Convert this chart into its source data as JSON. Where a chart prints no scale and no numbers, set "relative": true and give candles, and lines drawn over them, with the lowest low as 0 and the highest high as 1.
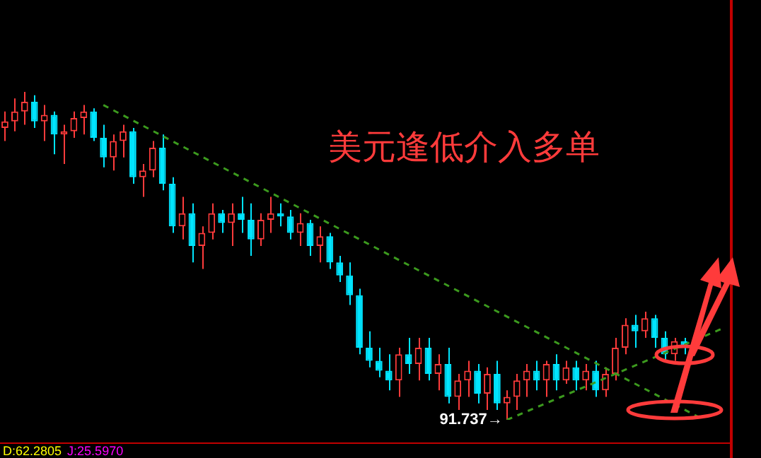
{
  "chart_data": {
    "type": "candlestick",
    "relative": true,
    "legend": false,
    "categories": [
      null,
      null,
      null,
      null,
      null,
      null,
      null,
      null,
      null,
      null,
      null,
      null,
      null,
      null,
      null,
      null,
      null,
      null,
      null,
      null,
      null,
      null,
      null,
      null,
      null,
      null,
      null,
      null,
      null,
      null,
      null,
      null,
      null,
      null,
      null,
      null,
      null,
      null,
      null,
      null,
      null,
      null,
      null,
      null,
      null,
      null,
      null,
      null,
      null,
      null,
      null,
      null,
      null,
      null,
      null,
      null,
      null,
      null,
      null,
      null,
      null,
      null,
      null,
      null,
      null,
      null,
      null,
      null,
      null,
      null,
      null,
      null,
      null,
      null
    ],
    "ohlc": [
      [
        0.89,
        0.94,
        0.85,
        0.91
      ],
      [
        0.91,
        0.98,
        0.88,
        0.94
      ],
      [
        0.94,
        1.0,
        0.9,
        0.97
      ],
      [
        0.97,
        0.99,
        0.89,
        0.91
      ],
      [
        0.91,
        0.96,
        0.85,
        0.93
      ],
      [
        0.93,
        0.94,
        0.81,
        0.87
      ],
      [
        0.87,
        0.9,
        0.78,
        0.88
      ],
      [
        0.88,
        0.94,
        0.86,
        0.92
      ],
      [
        0.92,
        0.96,
        0.87,
        0.94
      ],
      [
        0.94,
        0.95,
        0.85,
        0.86
      ],
      [
        0.86,
        0.9,
        0.77,
        0.8
      ],
      [
        0.8,
        0.87,
        0.76,
        0.85
      ],
      [
        0.85,
        0.9,
        0.8,
        0.88
      ],
      [
        0.88,
        0.89,
        0.72,
        0.74
      ],
      [
        0.74,
        0.78,
        0.68,
        0.76
      ],
      [
        0.76,
        0.85,
        0.74,
        0.83
      ],
      [
        0.83,
        0.87,
        0.7,
        0.72
      ],
      [
        0.72,
        0.74,
        0.57,
        0.59
      ],
      [
        0.59,
        0.68,
        0.55,
        0.63
      ],
      [
        0.63,
        0.66,
        0.48,
        0.53
      ],
      [
        0.53,
        0.59,
        0.46,
        0.57
      ],
      [
        0.57,
        0.66,
        0.55,
        0.63
      ],
      [
        0.63,
        0.64,
        0.57,
        0.6
      ],
      [
        0.6,
        0.66,
        0.53,
        0.63
      ],
      [
        0.63,
        0.68,
        0.57,
        0.61
      ],
      [
        0.61,
        0.66,
        0.5,
        0.55
      ],
      [
        0.55,
        0.63,
        0.53,
        0.61
      ],
      [
        0.61,
        0.68,
        0.57,
        0.63
      ],
      [
        0.63,
        0.66,
        0.59,
        0.62
      ],
      [
        0.62,
        0.64,
        0.55,
        0.57
      ],
      [
        0.57,
        0.63,
        0.53,
        0.6
      ],
      [
        0.6,
        0.61,
        0.5,
        0.53
      ],
      [
        0.53,
        0.59,
        0.48,
        0.56
      ],
      [
        0.56,
        0.57,
        0.46,
        0.48
      ],
      [
        0.48,
        0.5,
        0.42,
        0.44
      ],
      [
        0.44,
        0.48,
        0.35,
        0.38
      ],
      [
        0.38,
        0.4,
        0.2,
        0.22
      ],
      [
        0.22,
        0.27,
        0.16,
        0.18
      ],
      [
        0.18,
        0.22,
        0.13,
        0.15
      ],
      [
        0.15,
        0.2,
        0.09,
        0.12
      ],
      [
        0.12,
        0.22,
        0.07,
        0.2
      ],
      [
        0.2,
        0.25,
        0.14,
        0.17
      ],
      [
        0.17,
        0.25,
        0.12,
        0.22
      ],
      [
        0.22,
        0.25,
        0.12,
        0.14
      ],
      [
        0.14,
        0.2,
        0.09,
        0.17
      ],
      [
        0.17,
        0.22,
        0.05,
        0.07
      ],
      [
        0.07,
        0.14,
        0.03,
        0.12
      ],
      [
        0.12,
        0.18,
        0.07,
        0.15
      ],
      [
        0.15,
        0.17,
        0.05,
        0.08
      ],
      [
        0.08,
        0.16,
        0.03,
        0.14
      ],
      [
        0.14,
        0.18,
        0.03,
        0.05
      ],
      [
        0.05,
        0.09,
        0,
        0.07
      ],
      [
        0.07,
        0.14,
        0.03,
        0.12
      ],
      [
        0.12,
        0.17,
        0.07,
        0.15
      ],
      [
        0.15,
        0.18,
        0.09,
        0.12
      ],
      [
        0.12,
        0.18,
        0.07,
        0.17
      ],
      [
        0.17,
        0.2,
        0.09,
        0.12
      ],
      [
        0.12,
        0.18,
        0.11,
        0.16
      ],
      [
        0.16,
        0.18,
        0.09,
        0.12
      ],
      [
        0.12,
        0.17,
        0.09,
        0.15
      ],
      [
        0.15,
        0.18,
        0.07,
        0.09
      ],
      [
        0.09,
        0.16,
        0.07,
        0.14
      ],
      [
        0.14,
        0.25,
        0.12,
        0.22
      ],
      [
        0.22,
        0.31,
        0.2,
        0.29
      ],
      [
        0.29,
        0.32,
        0.22,
        0.27
      ],
      [
        0.27,
        0.33,
        0.25,
        0.31
      ],
      [
        0.31,
        0.32,
        0.22,
        0.25
      ],
      [
        0.25,
        0.27,
        0.18,
        0.2
      ],
      [
        0.2,
        0.25,
        0.18,
        0.24
      ],
      [
        0.24,
        0.25,
        0.2,
        0.22
      ],
      null,
      null,
      null,
      null
    ],
    "colors": [
      "#ff3b3b",
      "#ff3b3b",
      "#ff3b3b",
      "#00e5ff",
      "#ff3b3b",
      "#00e5ff",
      "#ff3b3b",
      "#ff3b3b",
      "#ff3b3b",
      "#00e5ff",
      "#00e5ff",
      "#ff3b3b",
      "#ff3b3b",
      "#00e5ff",
      "#ff3b3b",
      "#ff3b3b",
      "#00e5ff",
      "#00e5ff",
      "#ff3b3b",
      "#00e5ff",
      "#ff3b3b",
      "#ff3b3b",
      "#00e5ff",
      "#ff3b3b",
      "#00e5ff",
      "#00e5ff",
      "#ff3b3b",
      "#ff3b3b",
      "#00e5ff",
      "#00e5ff",
      "#ff3b3b",
      "#00e5ff",
      "#ff3b3b",
      "#00e5ff",
      "#00e5ff",
      "#00e5ff",
      "#00e5ff",
      "#00e5ff",
      "#00e5ff",
      "#00e5ff",
      "#ff3b3b",
      "#00e5ff",
      "#ff3b3b",
      "#00e5ff",
      "#ff3b3b",
      "#00e5ff",
      "#ff3b3b",
      "#ff3b3b",
      "#00e5ff",
      "#ff3b3b",
      "#00e5ff",
      "#ff3b3b",
      "#ff3b3b",
      "#ff3b3b",
      "#00e5ff",
      "#ff3b3b",
      "#00e5ff",
      "#ff3b3b",
      "#00e5ff",
      "#ff3b3b",
      "#00e5ff",
      "#ff3b3b",
      "#ff3b3b",
      "#ff3b3b",
      "#00e5ff",
      "#ff3b3b",
      "#00e5ff",
      "#00e5ff",
      "#ff3b3b",
      "#00e5ff",
      null,
      null,
      null,
      null
    ],
    "series": [
      {
        "type": "line",
        "color": "#3c9a1e",
        "line_style": "dashed",
        "values": [
          null,
          null,
          null,
          null,
          null,
          null,
          null,
          null,
          null,
          null,
          0.96,
          null,
          null,
          null,
          null,
          null,
          null,
          null,
          null,
          null,
          null,
          null,
          null,
          null,
          null,
          null,
          null,
          null,
          null,
          null,
          null,
          null,
          null,
          null,
          null,
          null,
          null,
          null,
          null,
          null,
          null,
          null,
          null,
          null,
          null,
          null,
          null,
          null,
          null,
          null,
          null,
          null,
          null,
          null,
          null,
          null,
          null,
          null,
          null,
          null,
          null,
          null,
          null,
          null,
          null,
          null,
          null,
          null,
          null,
          null,
          null,
          0,
          null,
          null
        ]
      },
      {
        "type": "line",
        "color": "#3c9a1e",
        "line_style": "dashed",
        "values": [
          null,
          null,
          null,
          null,
          null,
          null,
          null,
          null,
          null,
          null,
          null,
          null,
          null,
          null,
          null,
          null,
          null,
          null,
          null,
          null,
          null,
          null,
          null,
          null,
          null,
          null,
          null,
          null,
          null,
          null,
          null,
          null,
          null,
          null,
          null,
          null,
          null,
          null,
          null,
          null,
          null,
          null,
          null,
          null,
          null,
          null,
          null,
          null,
          null,
          null,
          null,
          0,
          null,
          null,
          null,
          null,
          null,
          null,
          null,
          null,
          null,
          null,
          null,
          null,
          null,
          null,
          null,
          null,
          null,
          null,
          null,
          null,
          null,
          0.28
        ]
      }
    ],
    "annotations": [
      "美元逢低介入多单",
      "91.737→",
      "D:62.2805",
      "J:25.5970"
    ]
  }
}
